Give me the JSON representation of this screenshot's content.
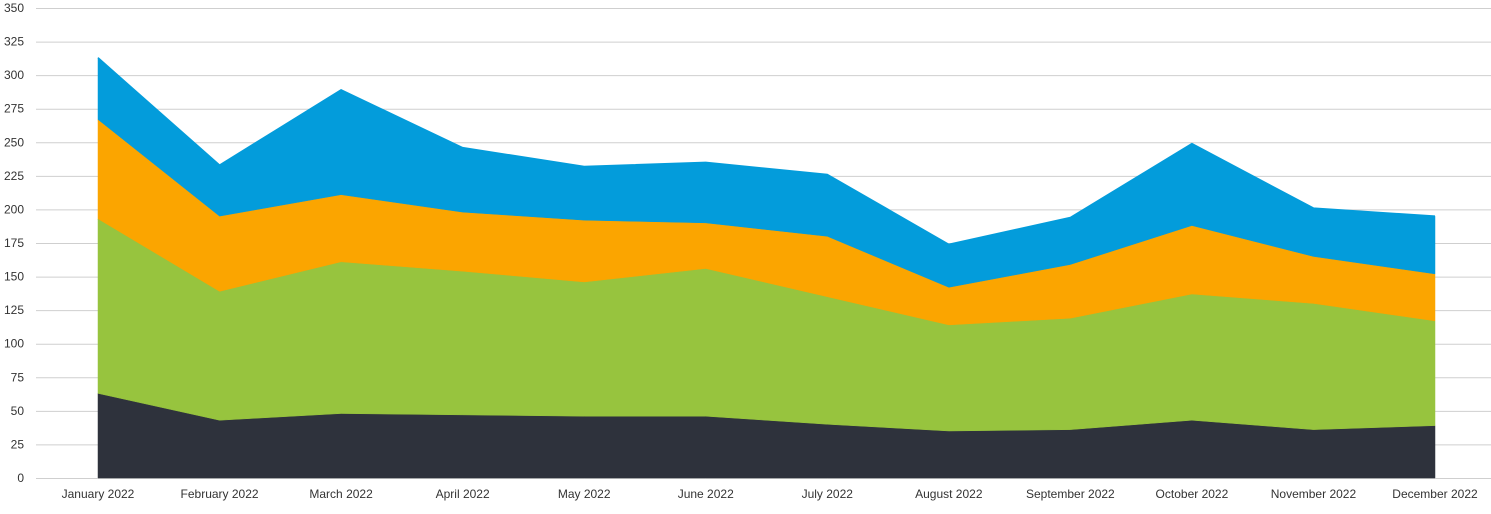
{
  "chart_data": {
    "type": "area",
    "stacked": true,
    "categories": [
      "January 2022",
      "February 2022",
      "March 2022",
      "April 2022",
      "May 2022",
      "June 2022",
      "July 2022",
      "August 2022",
      "September 2022",
      "October 2022",
      "November 2022",
      "December 2022"
    ],
    "series": [
      {
        "color": "#2e323c",
        "values": [
          63,
          43,
          48,
          47,
          46,
          46,
          40,
          35,
          36,
          43,
          36,
          39
        ]
      },
      {
        "color": "#97c43e",
        "values": [
          130,
          96,
          113,
          107,
          100,
          110,
          95,
          79,
          83,
          94,
          94,
          78
        ]
      },
      {
        "color": "#fba500",
        "values": [
          74,
          56,
          50,
          44,
          46,
          34,
          45,
          28,
          40,
          51,
          35,
          35
        ]
      },
      {
        "color": "#039cdb",
        "values": [
          46,
          38,
          78,
          48,
          40,
          45,
          46,
          32,
          35,
          61,
          36,
          43
        ]
      }
    ],
    "ylim": [
      0,
      350
    ],
    "yticks": [
      0,
      25,
      50,
      75,
      100,
      125,
      150,
      175,
      200,
      225,
      250,
      275,
      300,
      325,
      350
    ],
    "grid": true,
    "title": "",
    "xlabel": "",
    "ylabel": ""
  }
}
